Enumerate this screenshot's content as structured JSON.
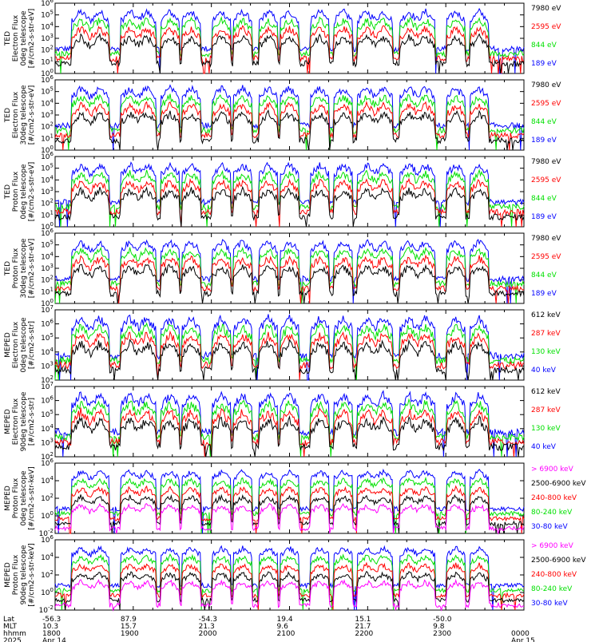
{
  "chart_data": {
    "type": "line",
    "start_date": "Apr 14",
    "end_date": "Apr 15",
    "x_axis": {
      "row_labels": [
        "Lat",
        "MLT",
        "hhmm",
        "2025"
      ],
      "ticks": [
        {
          "hhmm": "1800",
          "lat": "-56.3",
          "mlt": "10.3",
          "date": "Apr 14",
          "pos": 0.0
        },
        {
          "hhmm": "1900",
          "lat": "87.9",
          "mlt": "15.7",
          "date": "",
          "pos": 0.1667
        },
        {
          "hhmm": "2000",
          "lat": "-54.3",
          "mlt": "21.3",
          "date": "",
          "pos": 0.3333
        },
        {
          "hhmm": "2100",
          "lat": "19.4",
          "mlt": "9.6",
          "date": "",
          "pos": 0.5
        },
        {
          "hhmm": "2200",
          "lat": "15.1",
          "mlt": "21.7",
          "date": "",
          "pos": 0.6667
        },
        {
          "hhmm": "2300",
          "lat": "-50.0",
          "mlt": "9.8",
          "date": "",
          "pos": 0.8333
        },
        {
          "hhmm": "0000",
          "lat": "",
          "mlt": "",
          "date": "Apr 15",
          "pos": 1.0
        }
      ]
    },
    "panels": [
      {
        "ylabel": [
          "TED",
          "Electron Flux",
          "0deg telescope",
          "[#/cm2-s-str-eV]"
        ],
        "ylim_exp": [
          0,
          6
        ],
        "tick_exps": [
          0,
          1,
          2,
          3,
          4,
          5,
          6
        ],
        "series": [
          {
            "name": "7980 eV",
            "color": "#000000"
          },
          {
            "name": "2595 eV",
            "color": "#ff0000"
          },
          {
            "name": "844 eV",
            "color": "#00e000"
          },
          {
            "name": "189 eV",
            "color": "#0000ff"
          }
        ]
      },
      {
        "ylabel": [
          "TED",
          "Electron Flux",
          "30deg telescope",
          "[#/cm2-s-str-eV]"
        ],
        "ylim_exp": [
          0,
          6
        ],
        "tick_exps": [
          0,
          1,
          2,
          3,
          4,
          5,
          6
        ],
        "series": [
          {
            "name": "7980 eV",
            "color": "#000000"
          },
          {
            "name": "2595 eV",
            "color": "#ff0000"
          },
          {
            "name": "844 eV",
            "color": "#00e000"
          },
          {
            "name": "189 eV",
            "color": "#0000ff"
          }
        ]
      },
      {
        "ylabel": [
          "TED",
          "Proton Flux",
          "0deg telescope",
          "[#/cm2-s-str-eV]"
        ],
        "ylim_exp": [
          0,
          6
        ],
        "tick_exps": [
          0,
          1,
          2,
          3,
          4,
          5,
          6
        ],
        "series": [
          {
            "name": "7980 eV",
            "color": "#000000"
          },
          {
            "name": "2595 eV",
            "color": "#ff0000"
          },
          {
            "name": "844 eV",
            "color": "#00e000"
          },
          {
            "name": "189 eV",
            "color": "#0000ff"
          }
        ]
      },
      {
        "ylabel": [
          "TED",
          "Proton Flux",
          "30deg telescope",
          "[#/cm2-s-str-eV]"
        ],
        "ylim_exp": [
          0,
          6
        ],
        "tick_exps": [
          0,
          1,
          2,
          3,
          4,
          5,
          6
        ],
        "series": [
          {
            "name": "7980 eV",
            "color": "#000000"
          },
          {
            "name": "2595 eV",
            "color": "#ff0000"
          },
          {
            "name": "844 eV",
            "color": "#00e000"
          },
          {
            "name": "189 eV",
            "color": "#0000ff"
          }
        ]
      },
      {
        "ylabel": [
          "MEPED",
          "Electron Flux",
          "0deg telescope",
          "[#/cm2-s-str]"
        ],
        "ylim_exp": [
          2,
          7
        ],
        "tick_exps": [
          2,
          3,
          4,
          5,
          6,
          7
        ],
        "series": [
          {
            "name": "612 keV",
            "color": "#000000"
          },
          {
            "name": "287 keV",
            "color": "#ff0000"
          },
          {
            "name": "130 keV",
            "color": "#00e000"
          },
          {
            "name": "40 keV",
            "color": "#0000ff"
          }
        ]
      },
      {
        "ylabel": [
          "MEPED",
          "Electron Flux",
          "90deg telescope",
          "[#/cm2-s-str]"
        ],
        "ylim_exp": [
          2,
          7
        ],
        "tick_exps": [
          2,
          3,
          4,
          5,
          6,
          7
        ],
        "series": [
          {
            "name": "612 keV",
            "color": "#000000"
          },
          {
            "name": "287 keV",
            "color": "#ff0000"
          },
          {
            "name": "130 keV",
            "color": "#00e000"
          },
          {
            "name": "40 keV",
            "color": "#0000ff"
          }
        ]
      },
      {
        "ylabel": [
          "MEPED",
          "Proton Flux",
          "0deg telescope",
          "[#/cm2-s-str-keV]"
        ],
        "ylim_exp": [
          -2,
          6
        ],
        "tick_exps": [
          -2,
          0,
          2,
          4,
          6
        ],
        "series": [
          {
            "name": "> 6900 keV",
            "color": "#ff00ff"
          },
          {
            "name": "2500-6900 keV",
            "color": "#000000"
          },
          {
            "name": "240-800 keV",
            "color": "#ff0000"
          },
          {
            "name": "80-240 keV",
            "color": "#00e000"
          },
          {
            "name": "30-80 keV",
            "color": "#0000ff"
          }
        ]
      },
      {
        "ylabel": [
          "MEPED",
          "Proton Flux",
          "90deg telescope",
          "[#/cm2-s-str-keV]"
        ],
        "ylim_exp": [
          -2,
          6
        ],
        "tick_exps": [
          -2,
          0,
          2,
          4,
          6
        ],
        "series": [
          {
            "name": "> 6900 keV",
            "color": "#ff00ff"
          },
          {
            "name": "2500-6900 keV",
            "color": "#000000"
          },
          {
            "name": "240-800 keV",
            "color": "#ff0000"
          },
          {
            "name": "80-240 keV",
            "color": "#00e000"
          },
          {
            "name": "30-80 keV",
            "color": "#0000ff"
          }
        ]
      }
    ],
    "passes": [
      0.055,
      0.095,
      0.16,
      0.195,
      0.245,
      0.29,
      0.355,
      0.4,
      0.455,
      0.5,
      0.565,
      0.615,
      0.665,
      0.7,
      0.755,
      0.79,
      0.855,
      0.905
    ]
  }
}
